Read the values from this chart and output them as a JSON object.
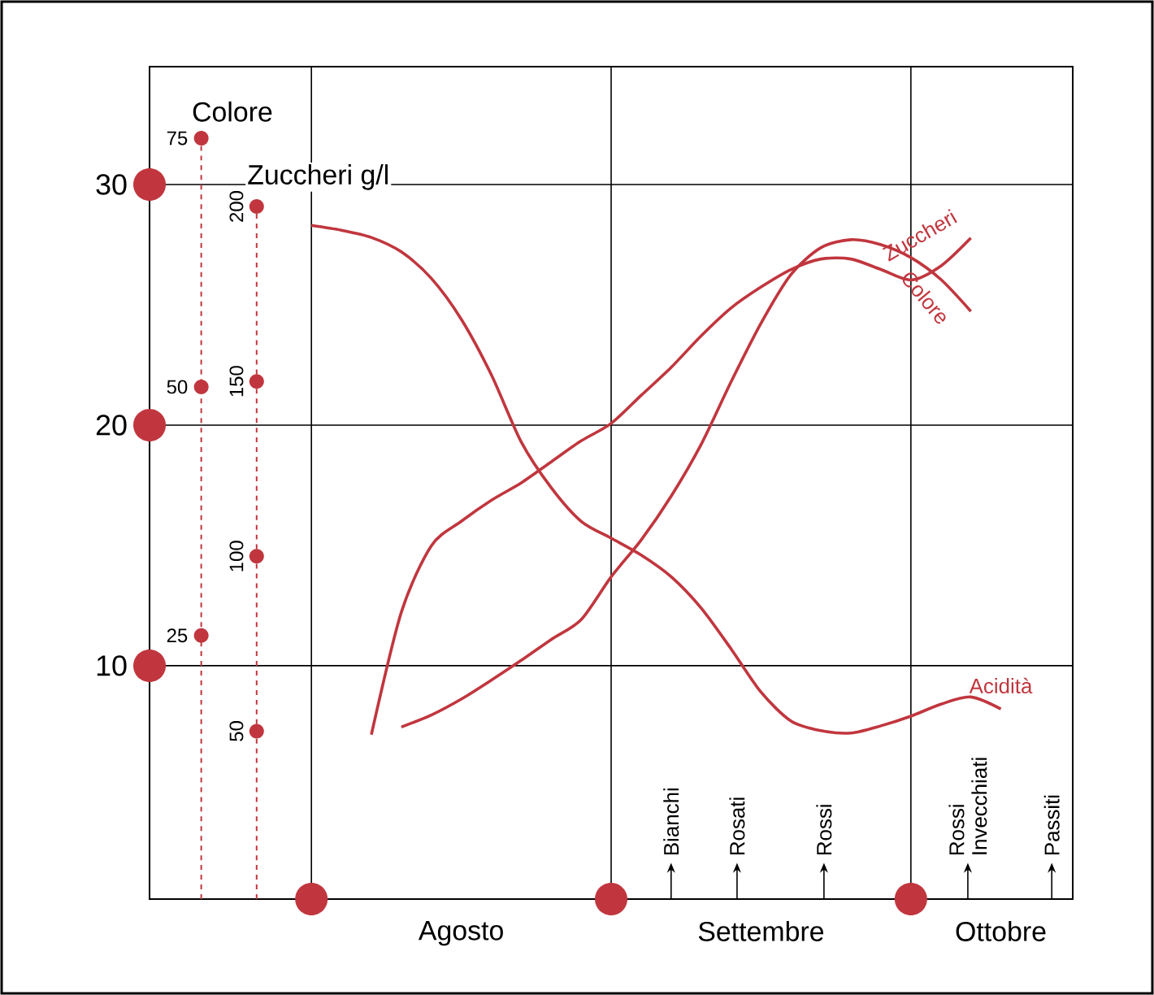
{
  "chart_data": {
    "type": "line",
    "categories": [
      null,
      null,
      null,
      null,
      null,
      null,
      null,
      null,
      null,
      null,
      "Agosto",
      null,
      null,
      null,
      null,
      null,
      null,
      null,
      null,
      null,
      "Settembre",
      null,
      null,
      null,
      null,
      null,
      null,
      null,
      "Ottobre",
      null,
      null
    ],
    "ylim": [
      0.3,
      34.9
    ],
    "yticks": [
      10,
      20,
      30
    ],
    "y2lim": [
      -1.5,
      82.2
    ],
    "y2ticks": [
      25,
      50,
      75
    ],
    "y2label": "Colore",
    "y3lim": [
      2,
      240
    ],
    "y3ticks": [
      50,
      100,
      150,
      200
    ],
    "y3label": "Zuccheri g/l",
    "grid": true,
    "series": [
      {
        "name": "Acidità",
        "color": "#c1363e",
        "axis": "y",
        "values": [
          null,
          null,
          null,
          null,
          null,
          28.3,
          28.1,
          27.8,
          27.2,
          26.1,
          24.4,
          22.1,
          19.3,
          17.4,
          16.0,
          15.3,
          14.6,
          13.7,
          12.4,
          10.7,
          8.9,
          7.7,
          7.3,
          7.2,
          7.5,
          7.9,
          8.4,
          8.7,
          8.2,
          null,
          null
        ]
      },
      {
        "name": "Zuccheri",
        "color": "#c1363e",
        "axis": "y3",
        "values": [
          null,
          null,
          null,
          null,
          null,
          null,
          null,
          49,
          84,
          103,
          110,
          116,
          121,
          127,
          133,
          138,
          146,
          154,
          163,
          171,
          177,
          182,
          185,
          185,
          182,
          179,
          183,
          191,
          null,
          null,
          null
        ]
      },
      {
        "name": "Colore",
        "color": "#c1363e",
        "axis": "y2",
        "values": [
          null,
          null,
          null,
          null,
          null,
          null,
          null,
          null,
          15.8,
          17.0,
          18.6,
          20.5,
          22.5,
          24.6,
          26.6,
          30.9,
          34.6,
          39.0,
          44.2,
          50.5,
          56.4,
          61.3,
          64.0,
          64.8,
          64.3,
          63.0,
          60.8,
          57.6,
          null,
          null,
          null
        ]
      }
    ],
    "annotations": [
      "Bianchi",
      "Rosati",
      "Rossi",
      "Rossi Invecchiati",
      "Passiti"
    ]
  }
}
